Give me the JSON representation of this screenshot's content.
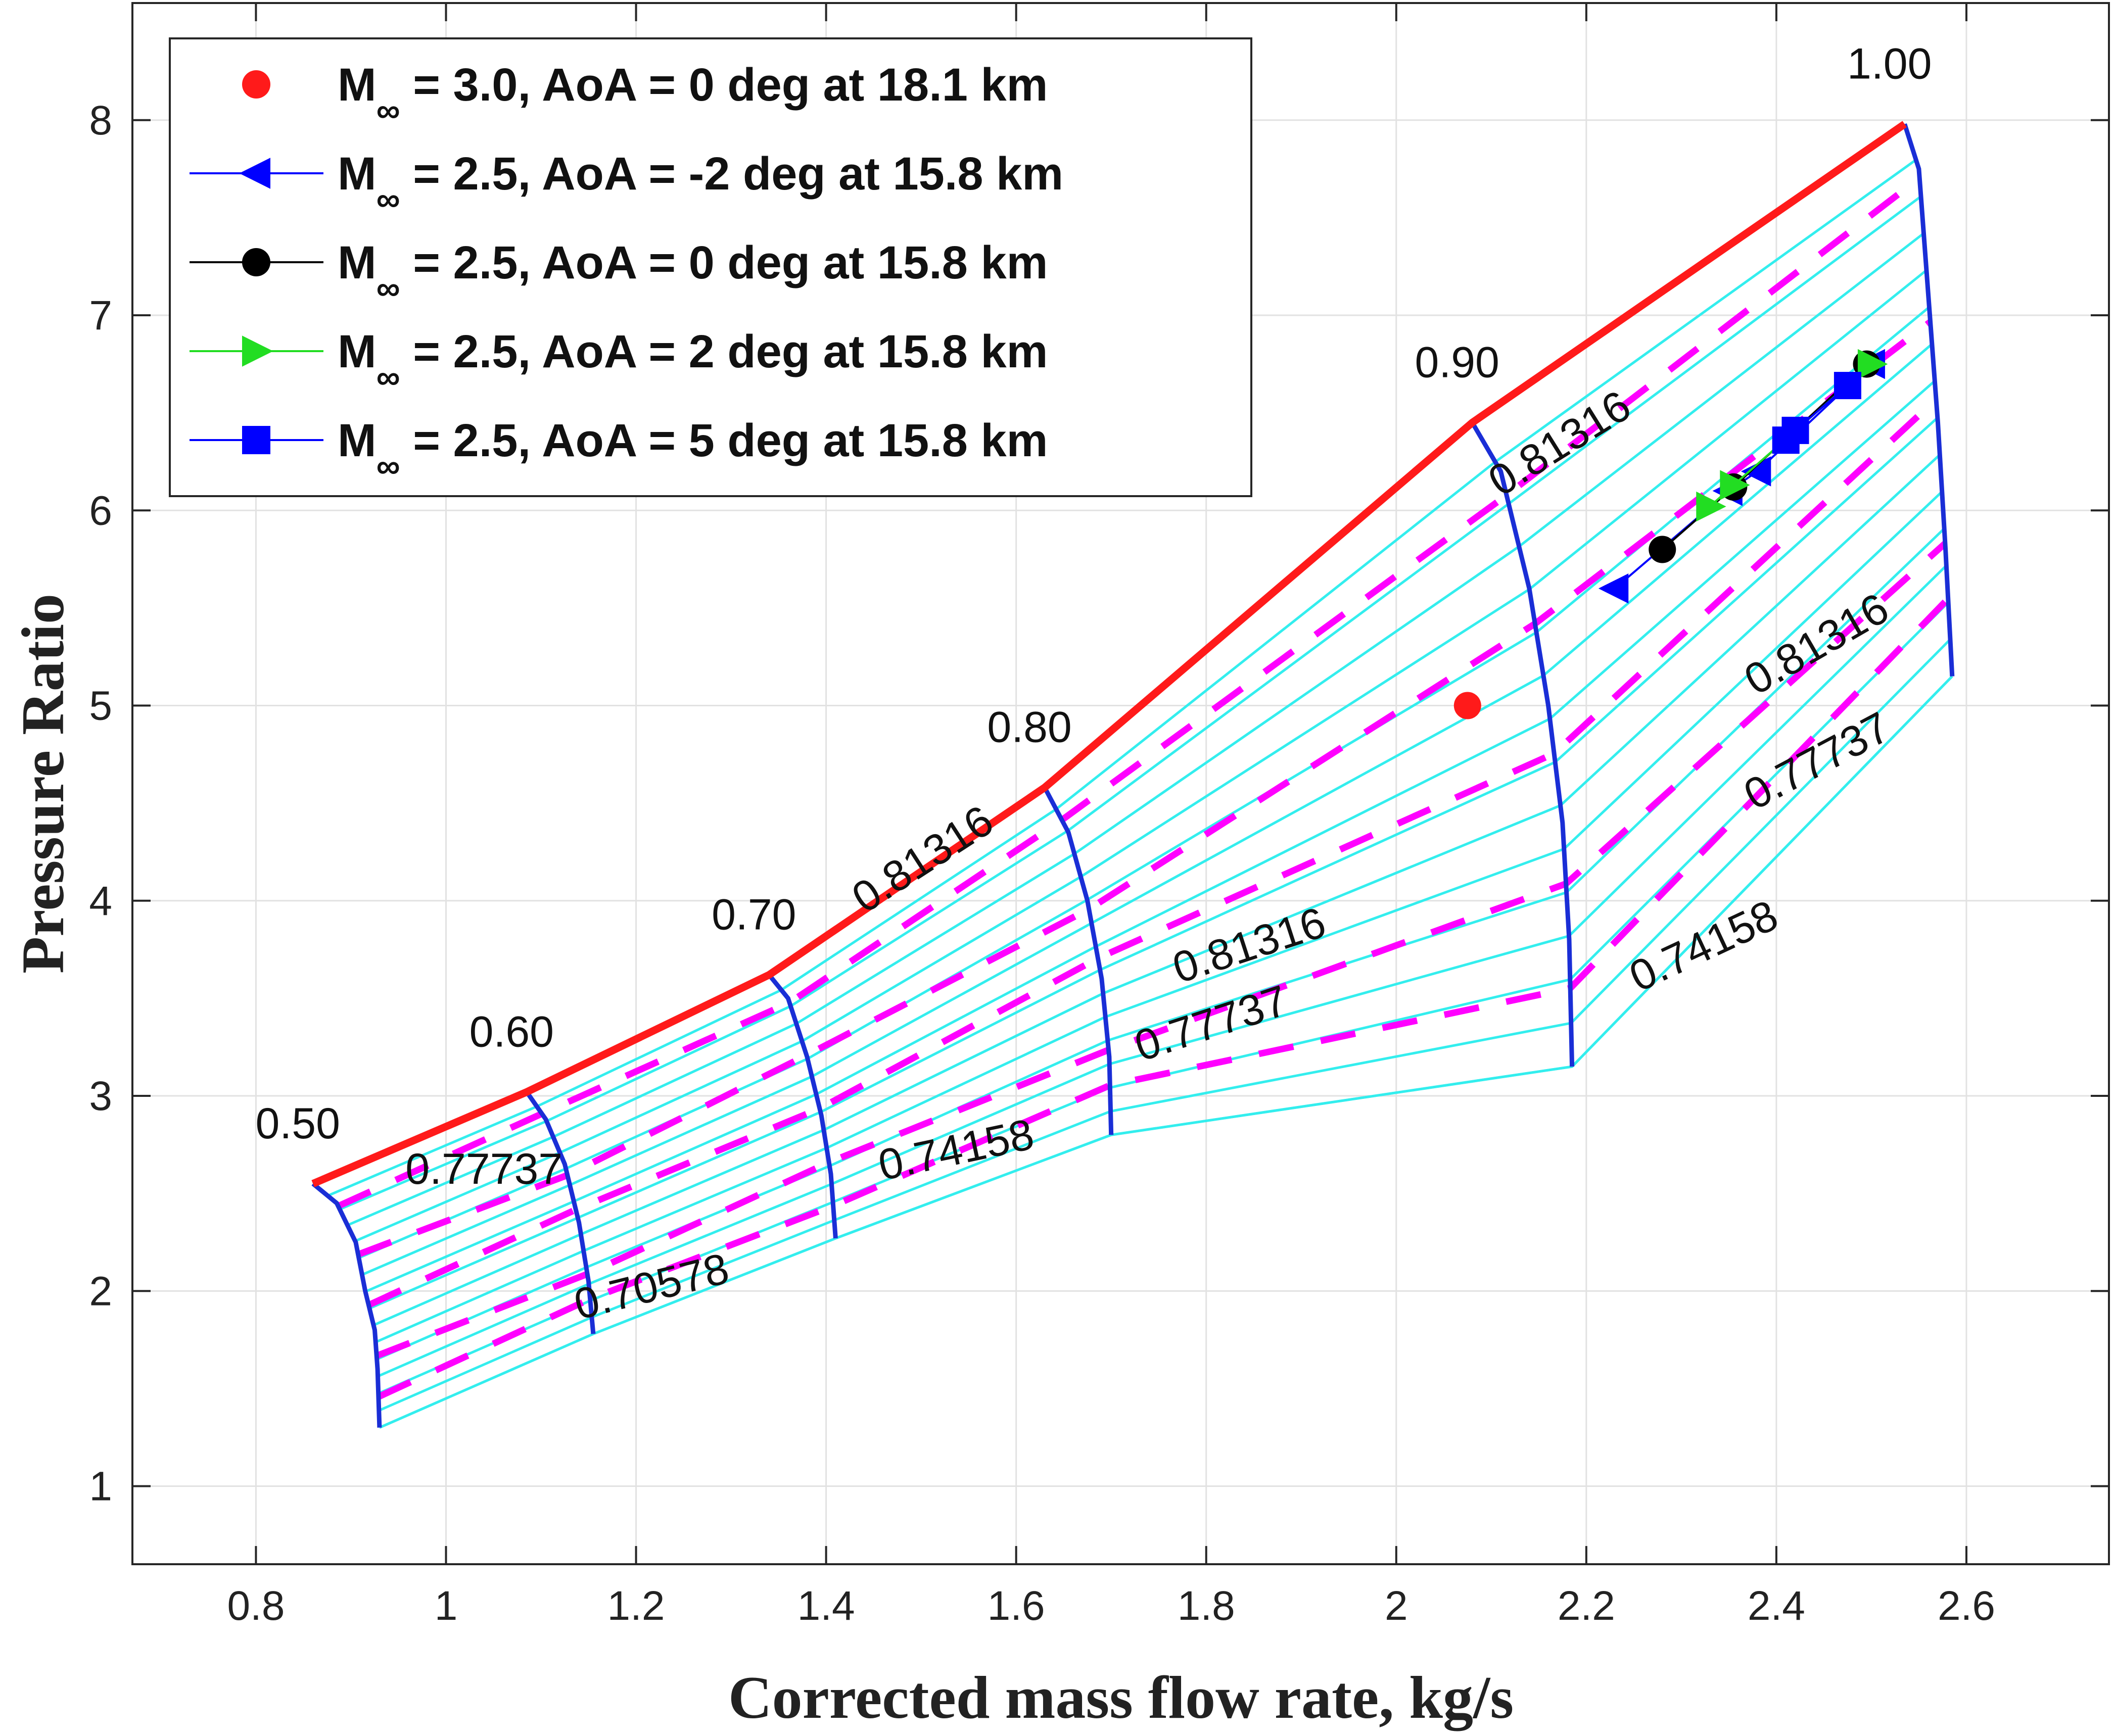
{
  "chart_data": {
    "type": "line",
    "title": "",
    "xlabel": "Corrected mass flow rate, kg/s",
    "ylabel": "Pressure Ratio",
    "xlim": [
      0.67,
      2.75
    ],
    "ylim": [
      0.6,
      8.6
    ],
    "xticks": [
      "0.8",
      "1",
      "1.2",
      "1.4",
      "1.6",
      "1.8",
      "2",
      "2.2",
      "2.4",
      "2.6"
    ],
    "xtick_values": [
      0.8,
      1.0,
      1.2,
      1.4,
      1.6,
      1.8,
      2.0,
      2.2,
      2.4,
      2.6
    ],
    "yticks": [
      "1",
      "2",
      "3",
      "4",
      "5",
      "6",
      "7",
      "8"
    ],
    "ytick_values": [
      1,
      2,
      3,
      4,
      5,
      6,
      7,
      8
    ],
    "grid": true,
    "colors": {
      "surge": "#ff1a1a",
      "speed_lines": "#1a2ed6",
      "constant_lines": "#33eeee",
      "efficiency": "#ff00ff",
      "aoa_m2": "#0000ff",
      "aoa_0": "#000000",
      "aoa_p2": "#22dd22",
      "aoa_p5": "#0000ff",
      "m3_point": "#ff1a1a"
    },
    "speed_lines": [
      {
        "label": "0.50",
        "points": [
          [
            0.86,
            2.55
          ],
          [
            0.885,
            2.45
          ],
          [
            0.905,
            2.25
          ],
          [
            0.915,
            2.0
          ],
          [
            0.925,
            1.8
          ],
          [
            0.928,
            1.6
          ],
          [
            0.93,
            1.3
          ]
        ]
      },
      {
        "label": "0.60",
        "points": [
          [
            1.085,
            3.02
          ],
          [
            1.105,
            2.88
          ],
          [
            1.125,
            2.65
          ],
          [
            1.14,
            2.35
          ],
          [
            1.15,
            2.05
          ],
          [
            1.155,
            1.78
          ]
        ]
      },
      {
        "label": "0.70",
        "points": [
          [
            1.34,
            3.62
          ],
          [
            1.36,
            3.5
          ],
          [
            1.38,
            3.2
          ],
          [
            1.395,
            2.9
          ],
          [
            1.405,
            2.6
          ],
          [
            1.41,
            2.27
          ]
        ]
      },
      {
        "label": "0.80",
        "points": [
          [
            1.63,
            4.58
          ],
          [
            1.655,
            4.35
          ],
          [
            1.675,
            4.0
          ],
          [
            1.69,
            3.6
          ],
          [
            1.698,
            3.2
          ],
          [
            1.7,
            2.8
          ]
        ]
      },
      {
        "label": "0.90",
        "points": [
          [
            2.08,
            6.45
          ],
          [
            2.11,
            6.2
          ],
          [
            2.14,
            5.6
          ],
          [
            2.16,
            5.0
          ],
          [
            2.175,
            4.4
          ],
          [
            2.182,
            3.8
          ],
          [
            2.185,
            3.15
          ]
        ]
      },
      {
        "label": "1.00",
        "points": [
          [
            2.535,
            7.98
          ],
          [
            2.55,
            7.75
          ],
          [
            2.56,
            7.1
          ],
          [
            2.57,
            6.45
          ],
          [
            2.578,
            5.8
          ],
          [
            2.585,
            5.15
          ]
        ]
      }
    ],
    "surge_line": [
      [
        0.86,
        2.55
      ],
      [
        1.085,
        3.02
      ],
      [
        1.34,
        3.62
      ],
      [
        1.63,
        4.58
      ],
      [
        2.08,
        6.45
      ],
      [
        2.535,
        7.98
      ]
    ],
    "efficiency_contours": [
      "0.81316",
      "0.77737",
      "0.74158",
      "0.70578"
    ],
    "legend": [
      {
        "prefix": "M",
        "sub": "∞",
        "text": " = 3.0, AoA = 0 deg at 18.1 km",
        "marker": "circle",
        "line": false
      },
      {
        "prefix": "M",
        "sub": "∞",
        "text": " = 2.5, AoA = -2 deg at 15.8 km",
        "marker": "triangle-left",
        "line": true
      },
      {
        "prefix": "M",
        "sub": "∞",
        "text": " = 2.5, AoA = 0 deg at 15.8 km",
        "marker": "circle",
        "line": true
      },
      {
        "prefix": "M",
        "sub": "∞",
        "text": " = 2.5, AoA = 2 deg at 15.8 km",
        "marker": "triangle-right",
        "line": true
      },
      {
        "prefix": "M",
        "sub": "∞",
        "text": " = 2.5, AoA = 5 deg at 15.8 km",
        "marker": "square",
        "line": true
      }
    ],
    "series": [
      {
        "name": "M∞ = 3.0, AoA = 0 deg at 18.1 km",
        "points": [
          [
            2.075,
            5.0
          ]
        ]
      },
      {
        "name": "M∞ = 2.5, AoA = -2 deg at 15.8 km",
        "points": [
          [
            2.23,
            5.6
          ],
          [
            2.35,
            6.1
          ],
          [
            2.38,
            6.2
          ],
          [
            2.5,
            6.75
          ]
        ]
      },
      {
        "name": "M∞ = 2.5, AoA = 0 deg at 15.8 km",
        "points": [
          [
            2.28,
            5.8
          ],
          [
            2.355,
            6.12
          ],
          [
            2.495,
            6.75
          ]
        ]
      },
      {
        "name": "M∞ = 2.5, AoA = 2 deg at 15.8 km",
        "points": [
          [
            2.33,
            6.02
          ],
          [
            2.355,
            6.13
          ],
          [
            2.5,
            6.75
          ]
        ]
      },
      {
        "name": "M∞ = 2.5, AoA = 5 deg at 15.8 km",
        "points": [
          [
            2.41,
            6.36
          ],
          [
            2.42,
            6.41
          ],
          [
            2.475,
            6.64
          ]
        ]
      }
    ]
  }
}
